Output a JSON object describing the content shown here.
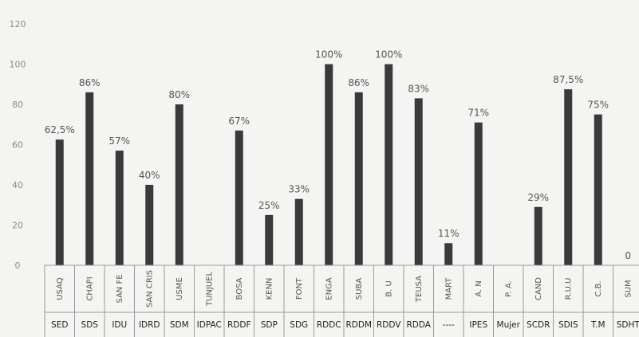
{
  "chart_data": {
    "type": "bar",
    "ylim": [
      0,
      120
    ],
    "yticks": [
      0,
      20,
      40,
      60,
      80,
      100,
      120
    ],
    "grid": false,
    "categories": [
      "USAQ",
      "CHAPI",
      "SAN FE",
      "SAN CRIS",
      "USME",
      "TUNJUEL",
      "BOSA",
      "KENN",
      "FONT",
      "ENGA",
      "SUBA",
      "B. U",
      "TEUSA",
      "MART",
      "A. N",
      "P. A.",
      "CAND",
      "R.U.U",
      "C.B.",
      "SUM"
    ],
    "groups": [
      "SED",
      "SDS",
      "IDU",
      "IDRD",
      "SDM",
      "IDPAC",
      "RDDF",
      "SDP",
      "SDG",
      "RDDC",
      "RDDM",
      "RDDV",
      "RDDA",
      "----",
      "IPES",
      "Mujer",
      "SCDR",
      "SDIS",
      "T.M",
      "SDHT"
    ],
    "values": [
      62.5,
      86,
      57,
      40,
      80,
      null,
      67,
      25,
      33,
      100,
      86,
      100,
      83,
      11,
      71,
      null,
      29,
      87.5,
      75,
      0
    ],
    "data_labels": [
      "62,5%",
      "86%",
      "57%",
      "40%",
      "80%",
      "",
      "67%",
      "25%",
      "33%",
      "100%",
      "86%",
      "100%",
      "83%",
      "11%",
      "71%",
      "",
      "29%",
      "87,5%",
      "75%",
      "0"
    ]
  }
}
